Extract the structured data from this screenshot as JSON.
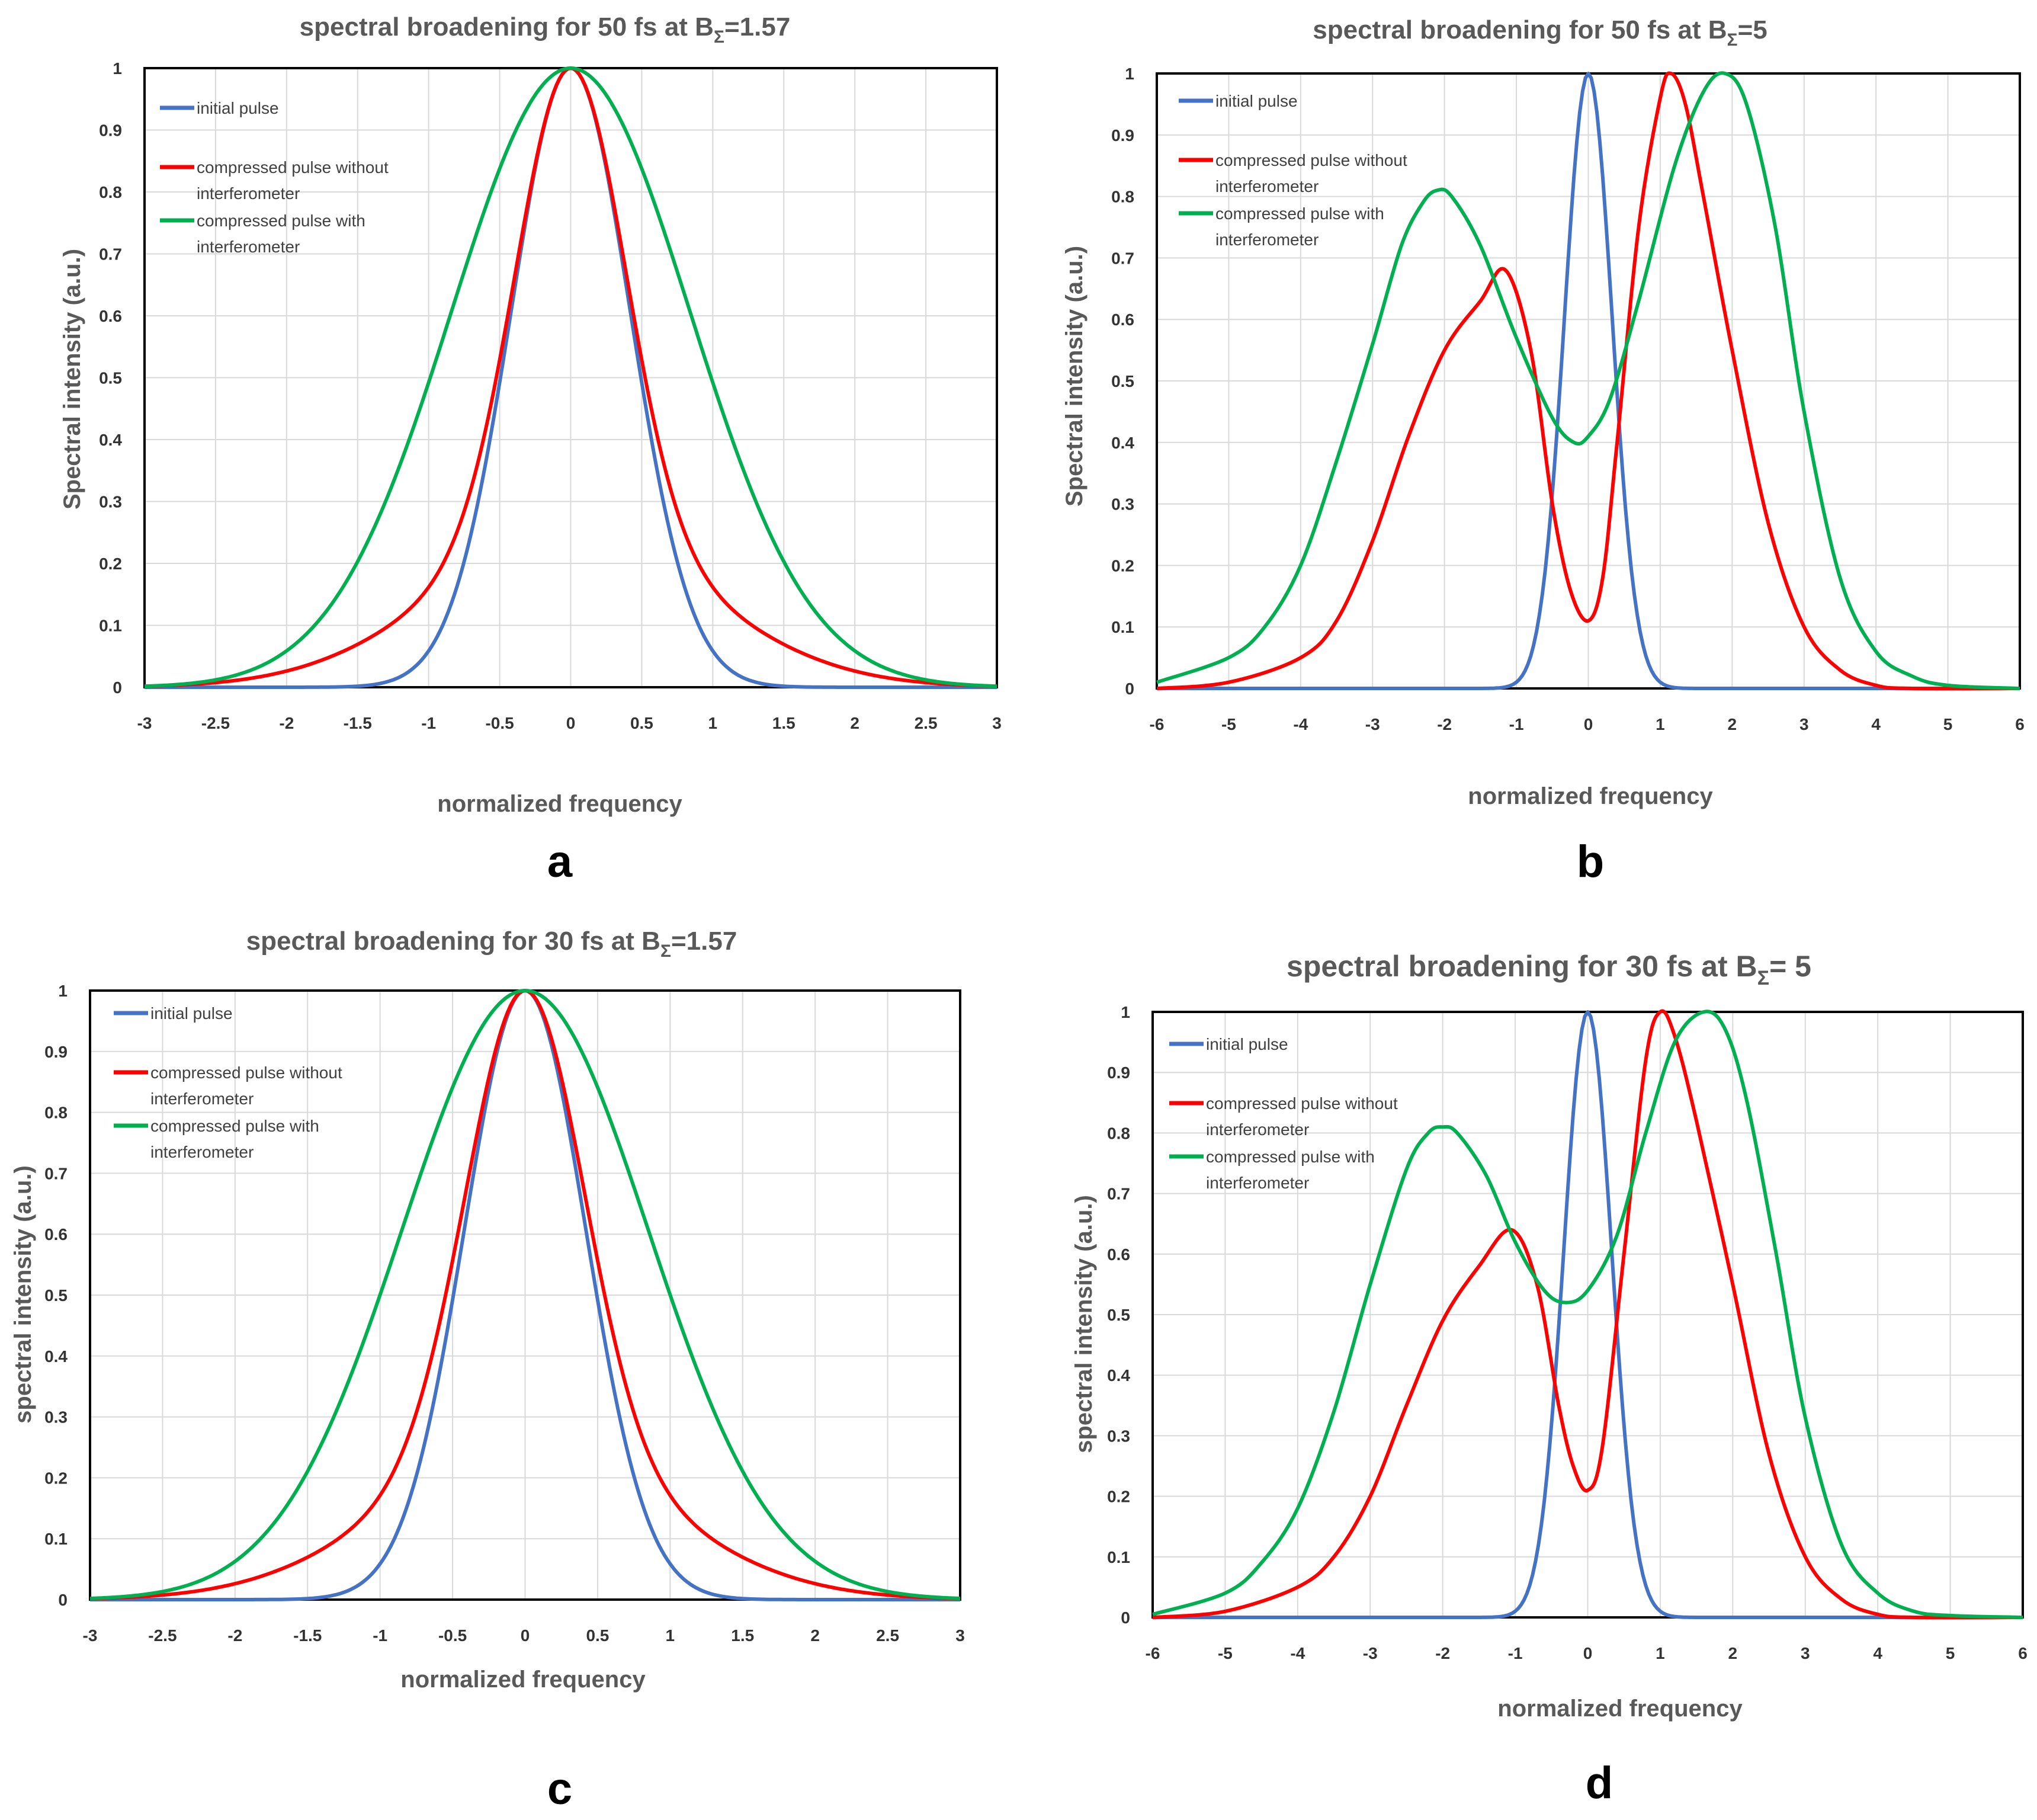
{
  "figure": {
    "panel_labels": [
      "a",
      "b",
      "c",
      "d"
    ]
  },
  "chart_data": [
    {
      "type": "line",
      "panel": "a",
      "title": "spectral broadening  for 50 fs at B",
      "title_subscript": "Σ",
      "title_suffix": "=1.57",
      "xlabel": "normalized frequency",
      "ylabel": "Spectral intensity (a.u.)",
      "xlim": [
        -3,
        3
      ],
      "ylim": [
        0,
        1
      ],
      "xticks": [
        "-3",
        "-2.5",
        "-2",
        "-1.5",
        "-1",
        "-0.5",
        "0",
        "0.5",
        "1",
        "1.5",
        "2",
        "2.5",
        "3"
      ],
      "yticks": [
        "0",
        "0.1",
        "0.2",
        "0.3",
        "0.4",
        "0.5",
        "0.6",
        "0.7",
        "0.8",
        "0.9",
        "1"
      ],
      "grid": true,
      "legend_position": "top-left",
      "series": [
        {
          "name": "initial pulse",
          "color": "#4472c4",
          "model": {
            "kind": "gauss",
            "p": [
              1,
              0,
              0.42
            ]
          }
        },
        {
          "name": "compressed pulse without interferometer",
          "color": "#ff0000",
          "model": {
            "kind": "sum",
            "comps": [
              [
                0.76,
                0,
                0.38
              ],
              [
                0.24,
                0,
                0.95
              ]
            ]
          }
        },
        {
          "name": "compressed pulse with interferometer",
          "color": "#00b050",
          "model": {
            "kind": "gauss",
            "p": [
              1,
              0,
              0.84
            ]
          }
        }
      ]
    },
    {
      "type": "line",
      "panel": "b",
      "title": "spectral broadening  for 50 fs at B",
      "title_subscript": "Σ",
      "title_suffix": "=5",
      "xlabel": "normalized frequency",
      "ylabel": "Spectral intensity (a.u.)",
      "xlim": [
        -6,
        6
      ],
      "ylim": [
        0,
        1
      ],
      "xticks": [
        "-6",
        "-5",
        "-4",
        "-3",
        "-2",
        "-1",
        "0",
        "1",
        "2",
        "3",
        "4",
        "5",
        "6"
      ],
      "yticks": [
        "0",
        "0.1",
        "0.2",
        "0.3",
        "0.4",
        "0.5",
        "0.6",
        "0.7",
        "0.8",
        "0.9",
        "1"
      ],
      "grid": true,
      "legend_position": "top-left",
      "series": [
        {
          "name": "initial pulse",
          "color": "#4472c4",
          "model": {
            "kind": "gauss",
            "p": [
              1,
              0,
              0.33
            ]
          }
        },
        {
          "name": "compressed pulse without interferometer",
          "color": "#ff0000",
          "model": {
            "kind": "pts",
            "pts": [
              [
                -6,
                0
              ],
              [
                -5,
                0.01
              ],
              [
                -4,
                0.05
              ],
              [
                -3.5,
                0.11
              ],
              [
                -3,
                0.24
              ],
              [
                -2.5,
                0.41
              ],
              [
                -2,
                0.55
              ],
              [
                -1.5,
                0.63
              ],
              [
                -1.15,
                0.68
              ],
              [
                -0.8,
                0.55
              ],
              [
                -0.5,
                0.3
              ],
              [
                -0.25,
                0.16
              ],
              [
                0,
                0.11
              ],
              [
                0.2,
                0.18
              ],
              [
                0.4,
                0.4
              ],
              [
                0.7,
                0.75
              ],
              [
                1.0,
                0.96
              ],
              [
                1.15,
                1.0
              ],
              [
                1.35,
                0.95
              ],
              [
                1.6,
                0.8
              ],
              [
                2,
                0.55
              ],
              [
                2.5,
                0.27
              ],
              [
                3,
                0.1
              ],
              [
                3.5,
                0.03
              ],
              [
                4,
                0.005
              ],
              [
                4.5,
                0
              ],
              [
                6,
                0
              ]
            ]
          }
        },
        {
          "name": "compressed pulse with interferometer",
          "color": "#00b050",
          "model": {
            "kind": "pts",
            "pts": [
              [
                -6,
                0.01
              ],
              [
                -5,
                0.05
              ],
              [
                -4.5,
                0.1
              ],
              [
                -4,
                0.2
              ],
              [
                -3.5,
                0.37
              ],
              [
                -3,
                0.56
              ],
              [
                -2.6,
                0.72
              ],
              [
                -2.3,
                0.79
              ],
              [
                -2.1,
                0.81
              ],
              [
                -1.9,
                0.8
              ],
              [
                -1.5,
                0.72
              ],
              [
                -1,
                0.57
              ],
              [
                -0.5,
                0.44
              ],
              [
                -0.2,
                0.4
              ],
              [
                0,
                0.41
              ],
              [
                0.3,
                0.47
              ],
              [
                0.7,
                0.63
              ],
              [
                1.2,
                0.85
              ],
              [
                1.6,
                0.97
              ],
              [
                1.9,
                1.0
              ],
              [
                2.2,
                0.95
              ],
              [
                2.6,
                0.75
              ],
              [
                3,
                0.45
              ],
              [
                3.5,
                0.18
              ],
              [
                4,
                0.06
              ],
              [
                4.5,
                0.02
              ],
              [
                5,
                0.005
              ],
              [
                6,
                0
              ]
            ]
          }
        }
      ]
    },
    {
      "type": "line",
      "panel": "c",
      "title": "spectral broadening  for 30 fs at B",
      "title_subscript": "Σ",
      "title_suffix": "=1.57",
      "xlabel": "normalized frequency",
      "ylabel": "spectral intensity (a.u.)",
      "xlim": [
        -3,
        3
      ],
      "ylim": [
        0,
        1
      ],
      "xticks": [
        "-3",
        "-2.5",
        "-2",
        "-1.5",
        "-1",
        "-0.5",
        "0",
        "0.5",
        "1",
        "1.5",
        "2",
        "2.5",
        "3"
      ],
      "yticks": [
        "0",
        "0.1",
        "0.2",
        "0.3",
        "0.4",
        "0.5",
        "0.6",
        "0.7",
        "0.8",
        "0.9",
        "1"
      ],
      "grid": true,
      "legend_position": "top-left",
      "series": [
        {
          "name": "initial pulse",
          "color": "#4472c4",
          "model": {
            "kind": "gauss",
            "p": [
              1,
              0,
              0.42
            ]
          }
        },
        {
          "name": "compressed pulse without interferometer",
          "color": "#ff0000",
          "model": {
            "kind": "sum",
            "comps": [
              [
                0.76,
                0,
                0.4
              ],
              [
                0.24,
                0,
                0.95
              ]
            ]
          }
        },
        {
          "name": "compressed pulse with interferometer",
          "color": "#00b050",
          "model": {
            "kind": "gauss",
            "p": [
              1,
              0,
              0.85
            ]
          }
        }
      ]
    },
    {
      "type": "line",
      "panel": "d",
      "title": "spectral broadening for 30 fs at B",
      "title_subscript": "Σ",
      "title_suffix": "= 5",
      "xlabel": "normalized frequency",
      "ylabel": "spectral intensity (a.u.)",
      "xlim": [
        -6,
        6
      ],
      "ylim": [
        0,
        1
      ],
      "xticks": [
        "-6",
        "-5",
        "-4",
        "-3",
        "-2",
        "-1",
        "0",
        "1",
        "2",
        "3",
        "4",
        "5",
        "6"
      ],
      "yticks": [
        "0",
        "0.1",
        "0.2",
        "0.3",
        "0.4",
        "0.5",
        "0.6",
        "0.7",
        "0.8",
        "0.9",
        "1"
      ],
      "grid": true,
      "legend_position": "top-left",
      "series": [
        {
          "name": "initial pulse",
          "color": "#4472c4",
          "model": {
            "kind": "gauss",
            "p": [
              1,
              0,
              0.33
            ]
          }
        },
        {
          "name": "compressed pulse without interferometer",
          "color": "#ff0000",
          "model": {
            "kind": "pts",
            "pts": [
              [
                -6,
                0
              ],
              [
                -5,
                0.01
              ],
              [
                -4,
                0.05
              ],
              [
                -3.5,
                0.1
              ],
              [
                -3,
                0.2
              ],
              [
                -2.5,
                0.35
              ],
              [
                -2,
                0.49
              ],
              [
                -1.5,
                0.58
              ],
              [
                -1.05,
                0.64
              ],
              [
                -0.7,
                0.55
              ],
              [
                -0.4,
                0.35
              ],
              [
                -0.2,
                0.25
              ],
              [
                0,
                0.21
              ],
              [
                0.2,
                0.28
              ],
              [
                0.5,
                0.6
              ],
              [
                0.8,
                0.92
              ],
              [
                1.0,
                1.0
              ],
              [
                1.2,
                0.96
              ],
              [
                1.5,
                0.82
              ],
              [
                2,
                0.55
              ],
              [
                2.5,
                0.27
              ],
              [
                3,
                0.1
              ],
              [
                3.5,
                0.03
              ],
              [
                4,
                0.005
              ],
              [
                4.5,
                0
              ],
              [
                6,
                0
              ]
            ]
          }
        },
        {
          "name": "compressed pulse with interferometer",
          "color": "#00b050",
          "model": {
            "kind": "pts",
            "pts": [
              [
                -6,
                0.005
              ],
              [
                -5,
                0.04
              ],
              [
                -4.5,
                0.09
              ],
              [
                -4,
                0.18
              ],
              [
                -3.5,
                0.34
              ],
              [
                -3,
                0.55
              ],
              [
                -2.5,
                0.74
              ],
              [
                -2.2,
                0.8
              ],
              [
                -2,
                0.81
              ],
              [
                -1.8,
                0.8
              ],
              [
                -1.4,
                0.73
              ],
              [
                -1,
                0.62
              ],
              [
                -0.6,
                0.54
              ],
              [
                -0.3,
                0.52
              ],
              [
                0,
                0.54
              ],
              [
                0.4,
                0.63
              ],
              [
                0.8,
                0.8
              ],
              [
                1.2,
                0.95
              ],
              [
                1.6,
                1.0
              ],
              [
                1.9,
                0.97
              ],
              [
                2.2,
                0.85
              ],
              [
                2.6,
                0.6
              ],
              [
                3,
                0.33
              ],
              [
                3.5,
                0.12
              ],
              [
                4,
                0.04
              ],
              [
                4.5,
                0.01
              ],
              [
                5,
                0.003
              ],
              [
                6,
                0
              ]
            ]
          }
        }
      ]
    }
  ]
}
